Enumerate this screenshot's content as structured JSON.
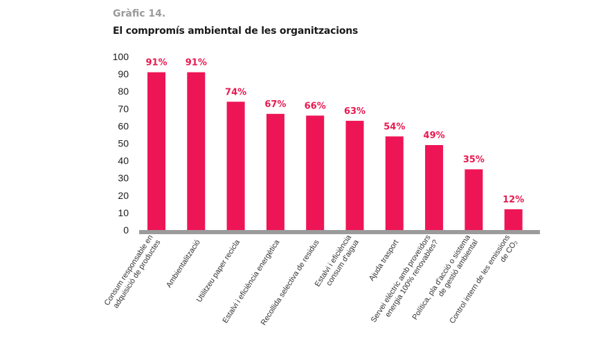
{
  "header": {
    "label": "Gràfic 14.",
    "title": "El compromís ambiental de les organitzacions"
  },
  "colors": {
    "bar": "#ee1556",
    "label": "#e8194f",
    "axis": "#9b9b9b"
  },
  "chart_data": {
    "type": "bar",
    "categories": [
      [
        "Consum responsable en",
        "adquisició de productes"
      ],
      [
        "Ambientalització"
      ],
      [
        "Utilitzeu paper recicla"
      ],
      [
        "Estalvi i eficiència energètica"
      ],
      [
        "Recollida selectiva de residus"
      ],
      [
        "Estalvi i eficiència",
        "consum d'aigua"
      ],
      [
        "Ajuda trasport"
      ],
      [
        "Servei elèctric amb proveïdors",
        "energia 100% renovables?"
      ],
      [
        "Política, pla d'acció o sistema",
        "de gestió ambiental"
      ],
      [
        "Control intern de les emissions",
        "de CO₂"
      ]
    ],
    "values": [
      91,
      91,
      74,
      67,
      66,
      63,
      54,
      49,
      35,
      12
    ],
    "value_labels": [
      "91%",
      "91%",
      "74%",
      "67%",
      "66%",
      "63%",
      "54%",
      "49%",
      "35%",
      "12%"
    ],
    "yticks": [
      "0",
      "10",
      "20",
      "30",
      "40",
      "50",
      "60",
      "70",
      "80",
      "90",
      "100"
    ],
    "ylim": [
      0,
      100
    ],
    "grid": false,
    "legend": "none"
  }
}
